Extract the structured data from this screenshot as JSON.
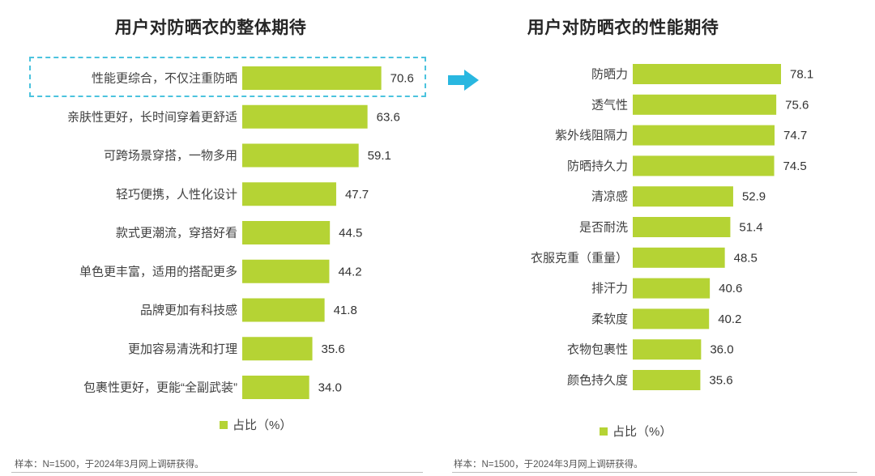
{
  "colors": {
    "bar": "#b5d334",
    "highlight": "#4cc3de",
    "arrow": "#29b7e0"
  },
  "chart_data": [
    {
      "type": "bar",
      "orientation": "horizontal",
      "title": "用户对防晒衣的整体期待",
      "categories": [
        "性能更综合，不仅注重防晒",
        "亲肤性更好，长时间穿着更舒适",
        "可跨场景穿搭，一物多用",
        "轻巧便携，人性化设计",
        "款式更潮流，穿搭好看",
        "单色更丰富，适用的搭配更多",
        "品牌更加有科技感",
        "更加容易清洗和打理",
        "包裹性更好，更能“全副武装”"
      ],
      "values": [
        70.6,
        63.6,
        59.1,
        47.7,
        44.5,
        44.2,
        41.8,
        35.6,
        34.0
      ],
      "value_labels": [
        "70.6",
        "63.6",
        "59.1",
        "47.7",
        "44.5",
        "44.2",
        "41.8",
        "35.6",
        "34.0"
      ],
      "xlim": [
        0,
        100
      ],
      "legend": "占比（%）",
      "highlighted_category": "性能更综合，不仅注重防晒"
    },
    {
      "type": "bar",
      "orientation": "horizontal",
      "title": "用户对防晒衣的性能期待",
      "categories": [
        "防晒力",
        "透气性",
        "紫外线阻隔力",
        "防晒持久力",
        "清凉感",
        "是否耐洗",
        "衣服克重（重量）",
        "排汗力",
        "柔软度",
        "衣物包裹性",
        "颜色持久度"
      ],
      "values": [
        78.1,
        75.6,
        74.7,
        74.5,
        52.9,
        51.4,
        48.5,
        40.6,
        40.2,
        36.0,
        35.6
      ],
      "value_labels": [
        "78.1",
        "75.6",
        "74.7",
        "74.5",
        "52.9",
        "51.4",
        "48.5",
        "40.6",
        "40.2",
        "36.0",
        "35.6"
      ],
      "xlim": [
        0,
        100
      ],
      "legend": "占比（%）"
    }
  ],
  "footnote_left": "样本：N=1500，于2024年3月网上调研获得。",
  "footnote_right": "样本：N=1500，于2024年3月网上调研获得。"
}
